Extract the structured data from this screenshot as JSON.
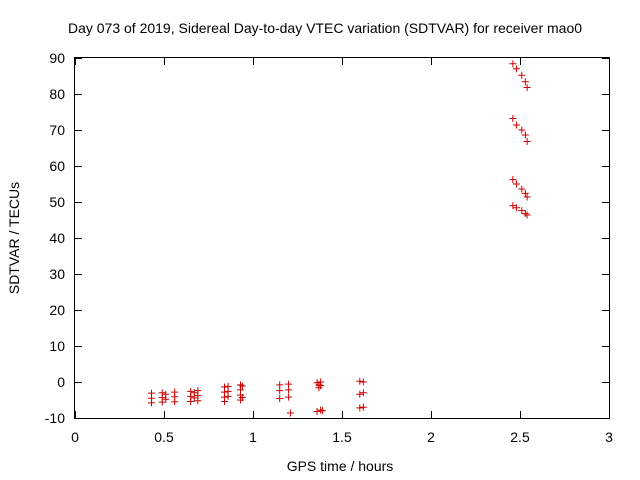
{
  "chart_data": {
    "type": "scatter",
    "title": "Day 073 of 2019, Sidereal Day-to-day VTEC variation (SDTVAR) for receiver mao0",
    "xlabel": "GPS time / hours",
    "ylabel": "SDTVAR / TECUs",
    "xlim": [
      0,
      3
    ],
    "ylim": [
      -10,
      90
    ],
    "x_ticks": [
      0,
      0.5,
      1,
      1.5,
      2,
      2.5,
      3
    ],
    "x_tick_labels": [
      "0",
      "0.5",
      "1",
      "1.5",
      "2",
      "2.5",
      "3"
    ],
    "y_ticks": [
      -10,
      0,
      10,
      20,
      30,
      40,
      50,
      60,
      70,
      80,
      90
    ],
    "y_tick_labels": [
      "-10",
      "0",
      "10",
      "20",
      "30",
      "40",
      "50",
      "60",
      "70",
      "80",
      "90"
    ],
    "grid": false,
    "marker": "plus",
    "marker_color": "#cc0000",
    "series": [
      {
        "name": "SDTVAR",
        "points": [
          [
            0.43,
            -3.1
          ],
          [
            0.43,
            -4.5
          ],
          [
            0.43,
            -5.8
          ],
          [
            0.49,
            -3.0
          ],
          [
            0.49,
            -4.3
          ],
          [
            0.49,
            -5.6
          ],
          [
            0.51,
            -3.4
          ],
          [
            0.51,
            -4.8
          ],
          [
            0.56,
            -2.8
          ],
          [
            0.56,
            -4.1
          ],
          [
            0.56,
            -5.5
          ],
          [
            0.65,
            -2.6
          ],
          [
            0.65,
            -4.0
          ],
          [
            0.65,
            -5.4
          ],
          [
            0.67,
            -3.0
          ],
          [
            0.67,
            -4.4
          ],
          [
            0.69,
            -2.4
          ],
          [
            0.69,
            -3.8
          ],
          [
            0.69,
            -5.2
          ],
          [
            0.84,
            -1.4
          ],
          [
            0.84,
            -2.8
          ],
          [
            0.84,
            -4.2
          ],
          [
            0.84,
            -5.4
          ],
          [
            0.86,
            -1.2
          ],
          [
            0.86,
            -2.6
          ],
          [
            0.86,
            -4.0
          ],
          [
            0.93,
            -0.8
          ],
          [
            0.93,
            -2.2
          ],
          [
            0.93,
            -3.6
          ],
          [
            0.93,
            -5.0
          ],
          [
            0.94,
            -1.1
          ],
          [
            0.94,
            -4.3
          ],
          [
            1.15,
            -0.8
          ],
          [
            1.15,
            -2.4
          ],
          [
            1.15,
            -4.6
          ],
          [
            1.2,
            -0.6
          ],
          [
            1.2,
            -2.2
          ],
          [
            1.2,
            -4.2
          ],
          [
            1.21,
            -8.6
          ],
          [
            1.36,
            -0.2
          ],
          [
            1.37,
            -0.8
          ],
          [
            1.37,
            -1.6
          ],
          [
            1.36,
            -8.2
          ],
          [
            1.38,
            0.0
          ],
          [
            1.38,
            -1.0
          ],
          [
            1.38,
            -7.8
          ],
          [
            1.39,
            -8.0
          ],
          [
            1.6,
            0.2
          ],
          [
            1.6,
            -3.4
          ],
          [
            1.6,
            -7.2
          ],
          [
            1.62,
            0.0
          ],
          [
            1.62,
            -3.0
          ],
          [
            1.62,
            -7.0
          ],
          [
            2.46,
            88.4
          ],
          [
            2.48,
            87.0
          ],
          [
            2.51,
            85.2
          ],
          [
            2.53,
            83.4
          ],
          [
            2.54,
            81.8
          ],
          [
            2.46,
            73.2
          ],
          [
            2.48,
            71.4
          ],
          [
            2.51,
            70.0
          ],
          [
            2.53,
            68.6
          ],
          [
            2.54,
            66.8
          ],
          [
            2.46,
            56.2
          ],
          [
            2.48,
            55.0
          ],
          [
            2.51,
            53.6
          ],
          [
            2.53,
            52.4
          ],
          [
            2.54,
            51.4
          ],
          [
            2.46,
            49.0
          ],
          [
            2.48,
            48.4
          ],
          [
            2.51,
            47.6
          ],
          [
            2.53,
            46.8
          ],
          [
            2.54,
            46.4
          ]
        ]
      }
    ]
  }
}
